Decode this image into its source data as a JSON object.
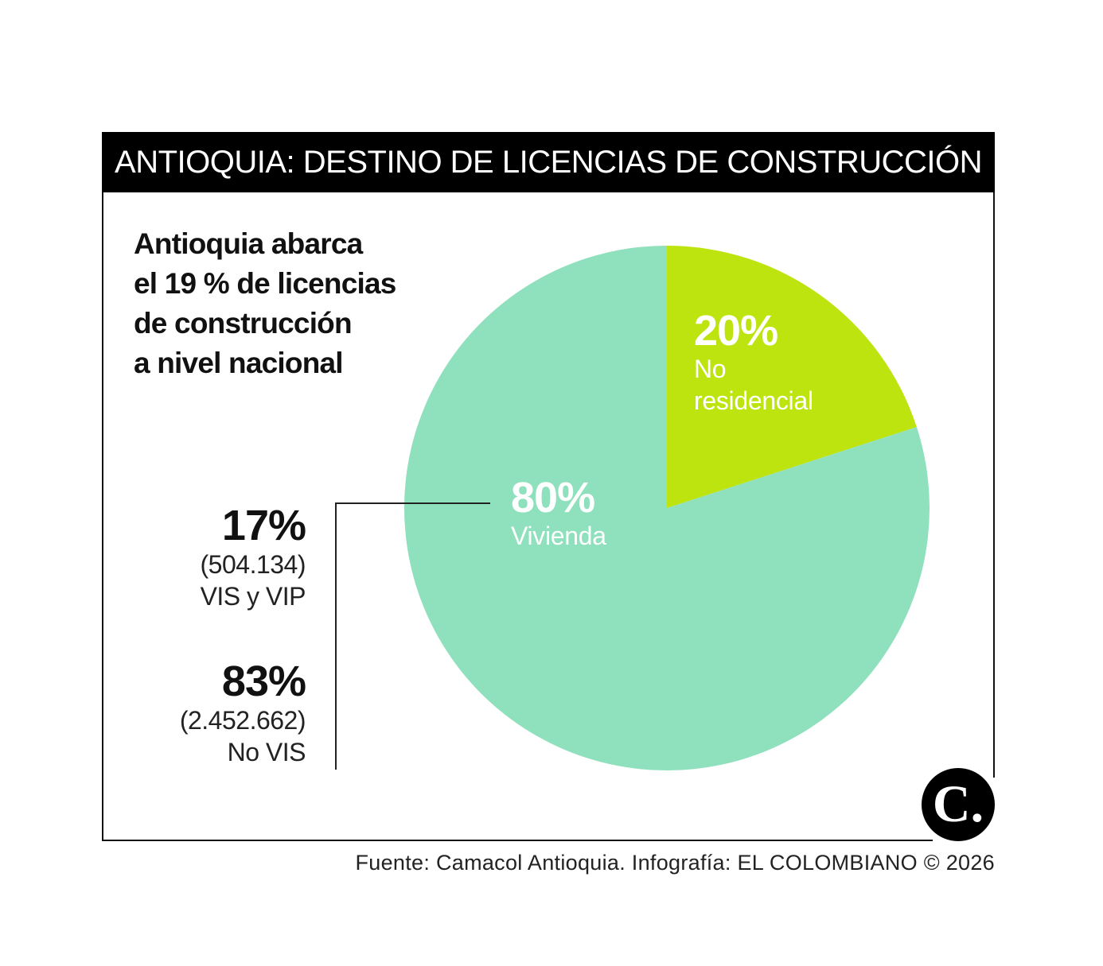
{
  "title": "ANTIOQUIA: DESTINO DE LICENCIAS DE CONSTRUCCIÓN",
  "headline": {
    "lines": [
      "Antioquia abarca",
      "el 19 % de licencias",
      "de construcción",
      "a nivel nacional"
    ]
  },
  "breakdown": [
    {
      "pct": "17%",
      "count": "(504.134)",
      "label": "VIS y VIP"
    },
    {
      "pct": "83%",
      "count": "(2.452.662)",
      "label": "No VIS"
    }
  ],
  "chart_data": {
    "type": "pie",
    "slices": [
      {
        "name": "No residencial",
        "value": 20,
        "display": "20%",
        "label_lines": [
          "No",
          "residencial"
        ],
        "color": "#bde40e"
      },
      {
        "name": "Vivienda",
        "value": 80,
        "display": "80%",
        "label_lines": [
          "Vivienda"
        ],
        "color": "#8fe0bc"
      }
    ],
    "start_angle_deg": 0,
    "direction": "clockwise"
  },
  "logo_text": "C.",
  "source": "Fuente: Camacol Antioquia. Infografía: EL COLOMBIANO © 2026",
  "colors": {
    "title_bg": "#000000",
    "title_text": "#ffffff",
    "text": "#111111"
  }
}
